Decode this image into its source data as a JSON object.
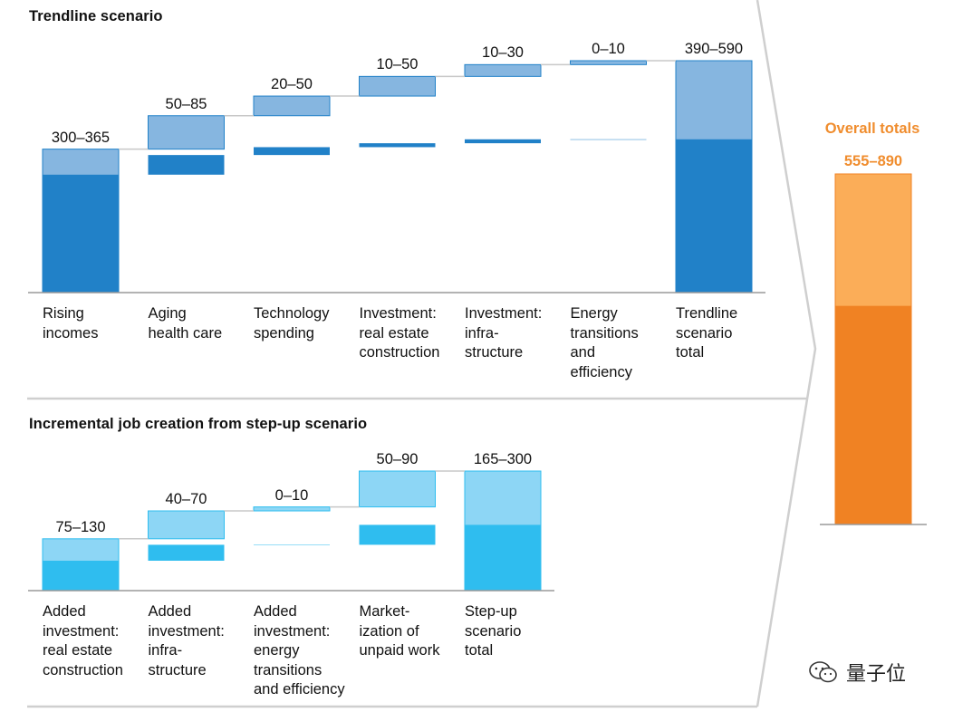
{
  "chart_data": [
    {
      "type": "bar",
      "subtype": "waterfall",
      "title": "Trendline scenario",
      "categories": [
        "Rising\nincomes",
        "Aging\nhealth care",
        "Technology\nspending",
        "Investment:\nreal estate\nconstruction",
        "Investment:\ninfra-\nstructure",
        "Energy\ntransitions\nand\nefficiency",
        "Trendline\nscenario\ntotal"
      ],
      "value_labels": [
        "300–365",
        "50–85",
        "20–50",
        "10–50",
        "10–30",
        "0–10",
        "390–590"
      ],
      "series": [
        {
          "name": "low",
          "values": [
            300,
            50,
            20,
            10,
            10,
            0,
            390
          ]
        },
        {
          "name": "high",
          "values": [
            365,
            85,
            50,
            50,
            30,
            10,
            590
          ]
        }
      ],
      "is_total": [
        false,
        false,
        false,
        false,
        false,
        false,
        true
      ],
      "colors": {
        "low": "#2181c8",
        "high": "#86b6e0"
      }
    },
    {
      "type": "bar",
      "subtype": "waterfall",
      "title": "Incremental job creation from step-up scenario",
      "categories": [
        "Added\ninvestment:\nreal estate\nconstruction",
        "Added\ninvestment:\ninfra-\nstructure",
        "Added\ninvestment:\nenergy\ntransitions\nand efficiency",
        "Market-\nization of\nunpaid work",
        "Step-up\nscenario\ntotal"
      ],
      "value_labels": [
        "75–130",
        "40–70",
        "0–10",
        "50–90",
        "165–300"
      ],
      "series": [
        {
          "name": "low",
          "values": [
            75,
            40,
            0,
            50,
            165
          ]
        },
        {
          "name": "high",
          "values": [
            130,
            70,
            10,
            90,
            300
          ]
        }
      ],
      "is_total": [
        false,
        false,
        false,
        false,
        true
      ],
      "colors": {
        "low": "#2fbdef",
        "high": "#8dd6f5"
      }
    },
    {
      "type": "bar",
      "title": "Overall totals",
      "value_label": "555–890",
      "low": 555,
      "high": 890,
      "colors": {
        "low": "#f08223",
        "high": "#fbad58"
      }
    }
  ],
  "watermark": "量子位"
}
